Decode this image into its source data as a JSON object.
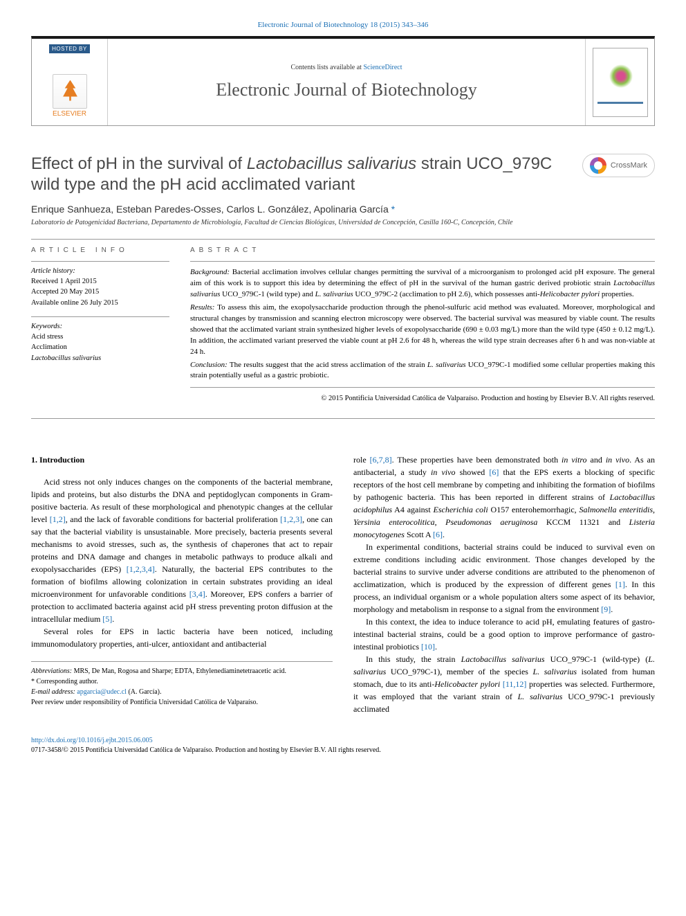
{
  "top_link": "Electronic Journal of Biotechnology 18 (2015) 343–346",
  "header": {
    "hosted_by": "HOSTED BY",
    "elsevier": "ELSEVIER",
    "contents_prefix": "Contents lists available at ",
    "contents_link": "ScienceDirect",
    "journal_name": "Electronic Journal of Biotechnology"
  },
  "crossmark": "CrossMark",
  "title_pre": "Effect of pH in the survival of ",
  "title_italic": "Lactobacillus salivarius",
  "title_post": " strain UCO_979C wild type and the pH acid acclimated variant",
  "authors": "Enrique Sanhueza, Esteban Paredes-Osses, Carlos L. González, Apolinaria García ",
  "corr_mark": "*",
  "affil": "Laboratorio de Patogenicidad Bacteriana, Departamento de Microbiología, Facultad de Ciencias Biológicas, Universidad de Concepción, Casilla 160-C, Concepción, Chile",
  "info_heading": "article info",
  "abstract_heading": "abstract",
  "history_label": "Article history:",
  "history": {
    "received": "Received 1 April 2015",
    "accepted": "Accepted 20 May 2015",
    "online": "Available online 26 July 2015"
  },
  "keywords_label": "Keywords:",
  "keywords": {
    "k1": "Acid stress",
    "k2": "Acclimation",
    "k3_italic": "Lactobacillus salivarius"
  },
  "abstract": {
    "bg_label": "Background:",
    "bg_text": " Bacterial acclimation involves cellular changes permitting the survival of a microorganism to prolonged acid pH exposure. The general aim of this work is to support this idea by determining the effect of pH in the survival of the human gastric derived probiotic strain ",
    "bg_it1": "Lactobacillus salivarius",
    "bg_text2": " UCO_979C-1 (wild type) and ",
    "bg_it2": "L. salivarius",
    "bg_text3": " UCO_979C-2 (acclimation to pH 2.6), which possesses anti-",
    "bg_it3": "Helicobacter pylori",
    "bg_text4": " properties.",
    "res_label": "Results:",
    "res_text": " To assess this aim, the exopolysaccharide production through the phenol-sulfuric acid method was evaluated. Moreover, morphological and structural changes by transmission and scanning electron microscopy were observed. The bacterial survival was measured by viable count. The results showed that the acclimated variant strain synthesized higher levels of exopolysaccharide (690 ± 0.03 mg/L) more than the wild type (450 ± 0.12 mg/L). In addition, the acclimated variant preserved the viable count at pH 2.6 for 48 h, whereas the wild type strain decreases after 6 h and was non-viable at 24 h.",
    "con_label": "Conclusion:",
    "con_text": " The results suggest that the acid stress acclimation of the strain ",
    "con_it": "L. salivarius",
    "con_text2": " UCO_979C-1 modified some cellular properties making this strain potentially useful as a gastric probiotic."
  },
  "copyright": "© 2015 Pontificia Universidad Católica de Valparaíso. Production and hosting by Elsevier B.V. All rights reserved.",
  "intro_heading": "1. Introduction",
  "body": {
    "p1a": "Acid stress not only induces changes on the components of the bacterial membrane, lipids and proteins, but also disturbs the DNA and peptidoglycan components in Gram-positive bacteria. As result of these morphological and phenotypic changes at the cellular level ",
    "r1": "[1,2]",
    "p1b": ", and the lack of favorable conditions for bacterial proliferation ",
    "r2": "[1,2,3]",
    "p1c": ", one can say that the bacterial viability is unsustainable. More precisely, bacteria presents several mechanisms to avoid stresses, such as, the synthesis of chaperones that act to repair proteins and DNA damage and changes in metabolic pathways to produce alkali and exopolysaccharides (EPS) ",
    "r3": "[1,2,3,4]",
    "p1d": ". Naturally, the bacterial EPS contributes to the formation of biofilms allowing colonization in certain substrates providing an ideal microenvironment for unfavorable conditions ",
    "r4": "[3,4]",
    "p1e": ". Moreover, EPS confers a barrier of protection to acclimated bacteria against acid pH stress preventing proton diffusion at the intracellular medium ",
    "r5": "[5]",
    "p1f": ".",
    "p2": "Several roles for EPS in lactic bacteria have been noticed, including immunomodulatory properties, anti-ulcer, antioxidant and antibacterial",
    "p3a": "role ",
    "r6": "[6,7,8]",
    "p3b": ". These properties have been demonstrated both ",
    "it1": "in vitro",
    "p3c": " and ",
    "it2": "in vivo",
    "p3d": ". As an antibacterial, a study ",
    "it3": "in vivo",
    "p3e": " showed ",
    "r7": "[6]",
    "p3f": " that the EPS exerts a blocking of specific receptors of the host cell membrane by competing and inhibiting the formation of biofilms by pathogenic bacteria. This has been reported in different strains of ",
    "it4": "Lactobacillus acidophilus",
    "p3g": " A4 against ",
    "it5": "Escherichia coli",
    "p3h": " O157 enterohemorrhagic, ",
    "it6": "Salmonella enteritidis",
    "p3i": ", ",
    "it7": "Yersinia enterocolitica",
    "p3j": ", ",
    "it8": "Pseudomonas aeruginosa",
    "p3k": " KCCM 11321 and ",
    "it9": "Listeria monocytogenes",
    "p3l": " Scott A ",
    "r8": "[6]",
    "p3m": ".",
    "p4a": "In experimental conditions, bacterial strains could be induced to survival even on extreme conditions including acidic environment. Those changes developed by the bacterial strains to survive under adverse conditions are attributed to the phenomenon of acclimatization, which is produced by the expression of different genes ",
    "r9": "[1]",
    "p4b": ". In this process, an individual organism or a whole population alters some aspect of its behavior, morphology and metabolism in response to a signal from the environment ",
    "r10": "[9]",
    "p4c": ".",
    "p5a": "In this context, the idea to induce tolerance to acid pH, emulating features of gastro-intestinal bacterial strains, could be a good option to improve performance of gastro-intestinal probiotics ",
    "r11": "[10]",
    "p5b": ".",
    "p6a": "In this study, the strain ",
    "it10": "Lactobacillus salivarius",
    "p6b": " UCO_979C-1 (wild-type) (",
    "it11": "L. salivarius",
    "p6c": " UCO_979C-1), member of the species ",
    "it12": "L. salivarius",
    "p6d": " isolated from human stomach, due to its anti-",
    "it13": "Helicobacter pylori",
    "p6e": " ",
    "r12": "[11,12]",
    "p6f": " properties was selected. Furthermore, it was employed that the variant strain of ",
    "it14": "L. salivarius",
    "p6g": " UCO_979C-1 previously acclimated"
  },
  "footnotes": {
    "abbrev_label": "Abbreviations:",
    "abbrev": " MRS, De Man, Rogosa and Sharpe; EDTA, Ethylenediaminetetraacetic acid.",
    "corr": "* Corresponding author.",
    "email_label": "E-mail address: ",
    "email": "apgarcia@udec.cl",
    "email_after": " (A. García).",
    "peer": "Peer review under responsibility of Pontificia Universidad Católica de Valparaíso."
  },
  "bottom": {
    "doi": "http://dx.doi.org/10.1016/j.ejbt.2015.06.005",
    "issn": "0717-3458/© 2015 Pontificia Universidad Católica de Valparaíso. Production and hosting by Elsevier B.V. All rights reserved."
  },
  "colors": {
    "link": "#1a6fb5",
    "text": "#000000",
    "title_gray": "#4a4a4a",
    "border": "#999999"
  }
}
